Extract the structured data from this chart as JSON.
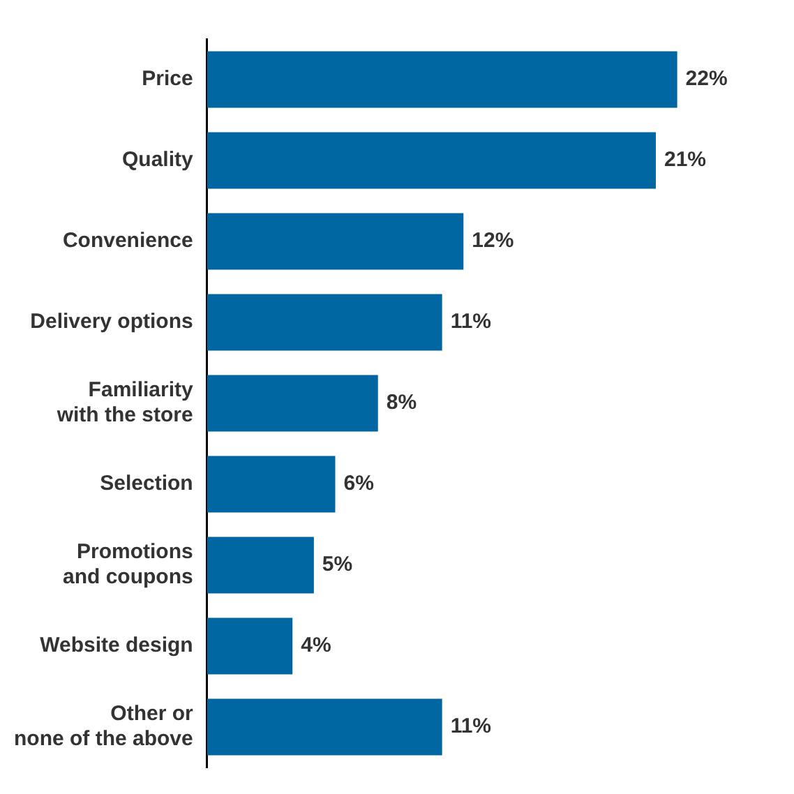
{
  "chart_data": {
    "type": "bar",
    "orientation": "horizontal",
    "categories": [
      "Price",
      "Quality",
      "Convenience",
      "Delivery options",
      "Familiarity\nwith the store",
      "Selection",
      "Promotions\nand coupons",
      "Website design",
      "Other or\nnone of the above"
    ],
    "values": [
      22,
      21,
      12,
      11,
      8,
      6,
      5,
      4,
      11
    ],
    "value_labels": [
      "22%",
      "21%",
      "12%",
      "11%",
      "8%",
      "6%",
      "5%",
      "4%",
      "11%"
    ],
    "color": "#0066a1",
    "legend": false,
    "tick_labels": "y"
  }
}
